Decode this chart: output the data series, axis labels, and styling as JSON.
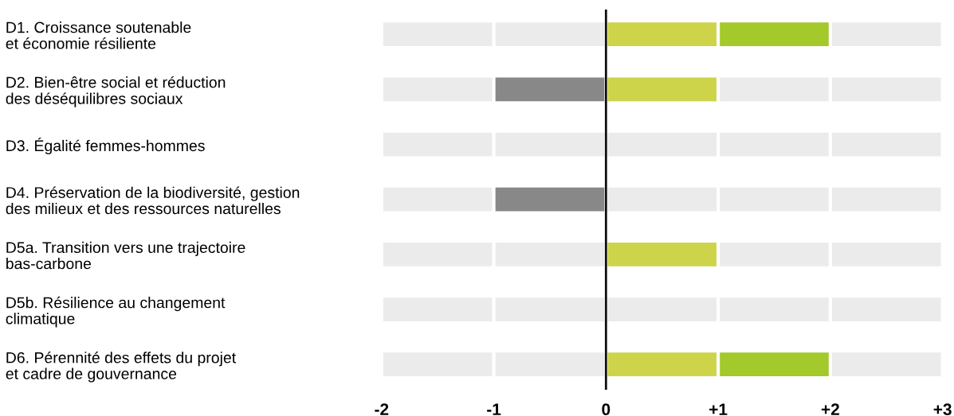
{
  "chart_data": {
    "type": "bar",
    "orientation": "horizontal",
    "stacked": true,
    "categories": [
      "D1. Croissance soutenable\net économie résiliente",
      "D2. Bien-être social et réduction\ndes déséquilibres sociaux",
      "D3. Égalité femmes-hommes",
      "D4. Préservation de la biodiversité, gestion\ndes milieux et des ressources naturelles",
      "D5a. Transition vers une trajectoire\nbas-carbone",
      "D5b. Résilience au changement\nclimatique",
      "D6. Pérennité des effets du projet\net cadre de gouvernance"
    ],
    "series": [
      {
        "color": "#cdd44a",
        "values": [
          1,
          1,
          0,
          0,
          1,
          0,
          1
        ]
      },
      {
        "color": "#a3c92a",
        "values": [
          1,
          0,
          0,
          0,
          0,
          0,
          1
        ]
      },
      {
        "color": "#888888",
        "values": [
          0,
          -1,
          0,
          -1,
          0,
          0,
          0
        ]
      }
    ],
    "xlim": [
      -2,
      3
    ],
    "xticks": [
      -2,
      -1,
      0,
      {
        "value": 1,
        "label": "+1"
      },
      {
        "value": 2,
        "label": "+2"
      },
      {
        "value": 3,
        "label": "+3"
      }
    ],
    "grid": "x",
    "bands": [
      {
        "axis": "x",
        "from": -2,
        "to": 3,
        "color": "#ebebeb"
      }
    ],
    "ref_lines": [
      {
        "axis": "x",
        "value": 0,
        "color": "#111111"
      }
    ],
    "legend": false
  }
}
